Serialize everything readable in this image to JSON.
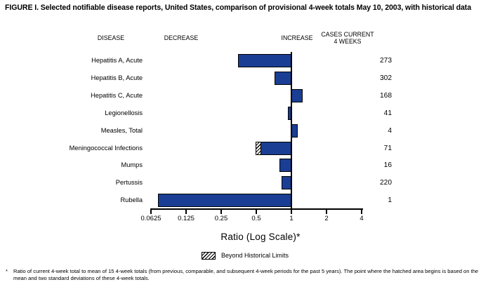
{
  "title": "FIGURE I. Selected notifiable disease reports, United States, comparison of provisional 4-week totals May 10, 2003, with historical data",
  "headers": {
    "disease": "DISEASE",
    "decrease": "DECREASE",
    "increase": "INCREASE",
    "cases_line1": "CASES CURRENT",
    "cases_line2": "4 WEEKS"
  },
  "chart_data": {
    "type": "bar",
    "orientation": "horizontal",
    "scale": "log2",
    "title": "FIGURE I. Selected notifiable disease reports, United States, comparison of provisional 4-week totals May 10, 2003, with historical data",
    "xlabel": "Ratio (Log Scale)*",
    "xlim": [
      0.0625,
      4
    ],
    "baseline": 1,
    "x_ticks": [
      0.0625,
      0.125,
      0.25,
      0.5,
      1,
      2,
      4
    ],
    "x_tick_labels": [
      "0.0625",
      "0.125",
      "0.25",
      "0.5",
      "1",
      "2",
      "4"
    ],
    "grid": false,
    "bar_color": "#1a3e94",
    "rows": [
      {
        "disease": "Hepatitis A, Acute",
        "ratio": 0.35,
        "cases": "273",
        "beyond_historical_limit": null
      },
      {
        "disease": "Hepatitis B, Acute",
        "ratio": 0.72,
        "cases": "302",
        "beyond_historical_limit": null
      },
      {
        "disease": "Hepatitis C, Acute",
        "ratio": 1.25,
        "cases": "168",
        "beyond_historical_limit": null
      },
      {
        "disease": "Legionellosis",
        "ratio": 0.93,
        "cases": "41",
        "beyond_historical_limit": null
      },
      {
        "disease": "Measles, Total",
        "ratio": 1.13,
        "cases": "4",
        "beyond_historical_limit": null
      },
      {
        "disease": "Meningococcal Infections",
        "ratio": 0.49,
        "cases": "71",
        "beyond_historical_limit": 0.535
      },
      {
        "disease": "Mumps",
        "ratio": 0.79,
        "cases": "16",
        "beyond_historical_limit": null
      },
      {
        "disease": "Pertussis",
        "ratio": 0.82,
        "cases": "220",
        "beyond_historical_limit": null
      },
      {
        "disease": "Rubella",
        "ratio": 0.072,
        "cases": "1",
        "beyond_historical_limit": null
      }
    ]
  },
  "legend": {
    "beyond_label": "Beyond Historical Limits"
  },
  "footnote": {
    "marker": "*",
    "text": "Ratio of current 4-week total to mean of 15 4-week totals (from previous, comparable, and subsequent 4-week periods for the past 5 years). The point where the hatched area begins is based on the mean and two standard deviations of these 4-week totals."
  }
}
